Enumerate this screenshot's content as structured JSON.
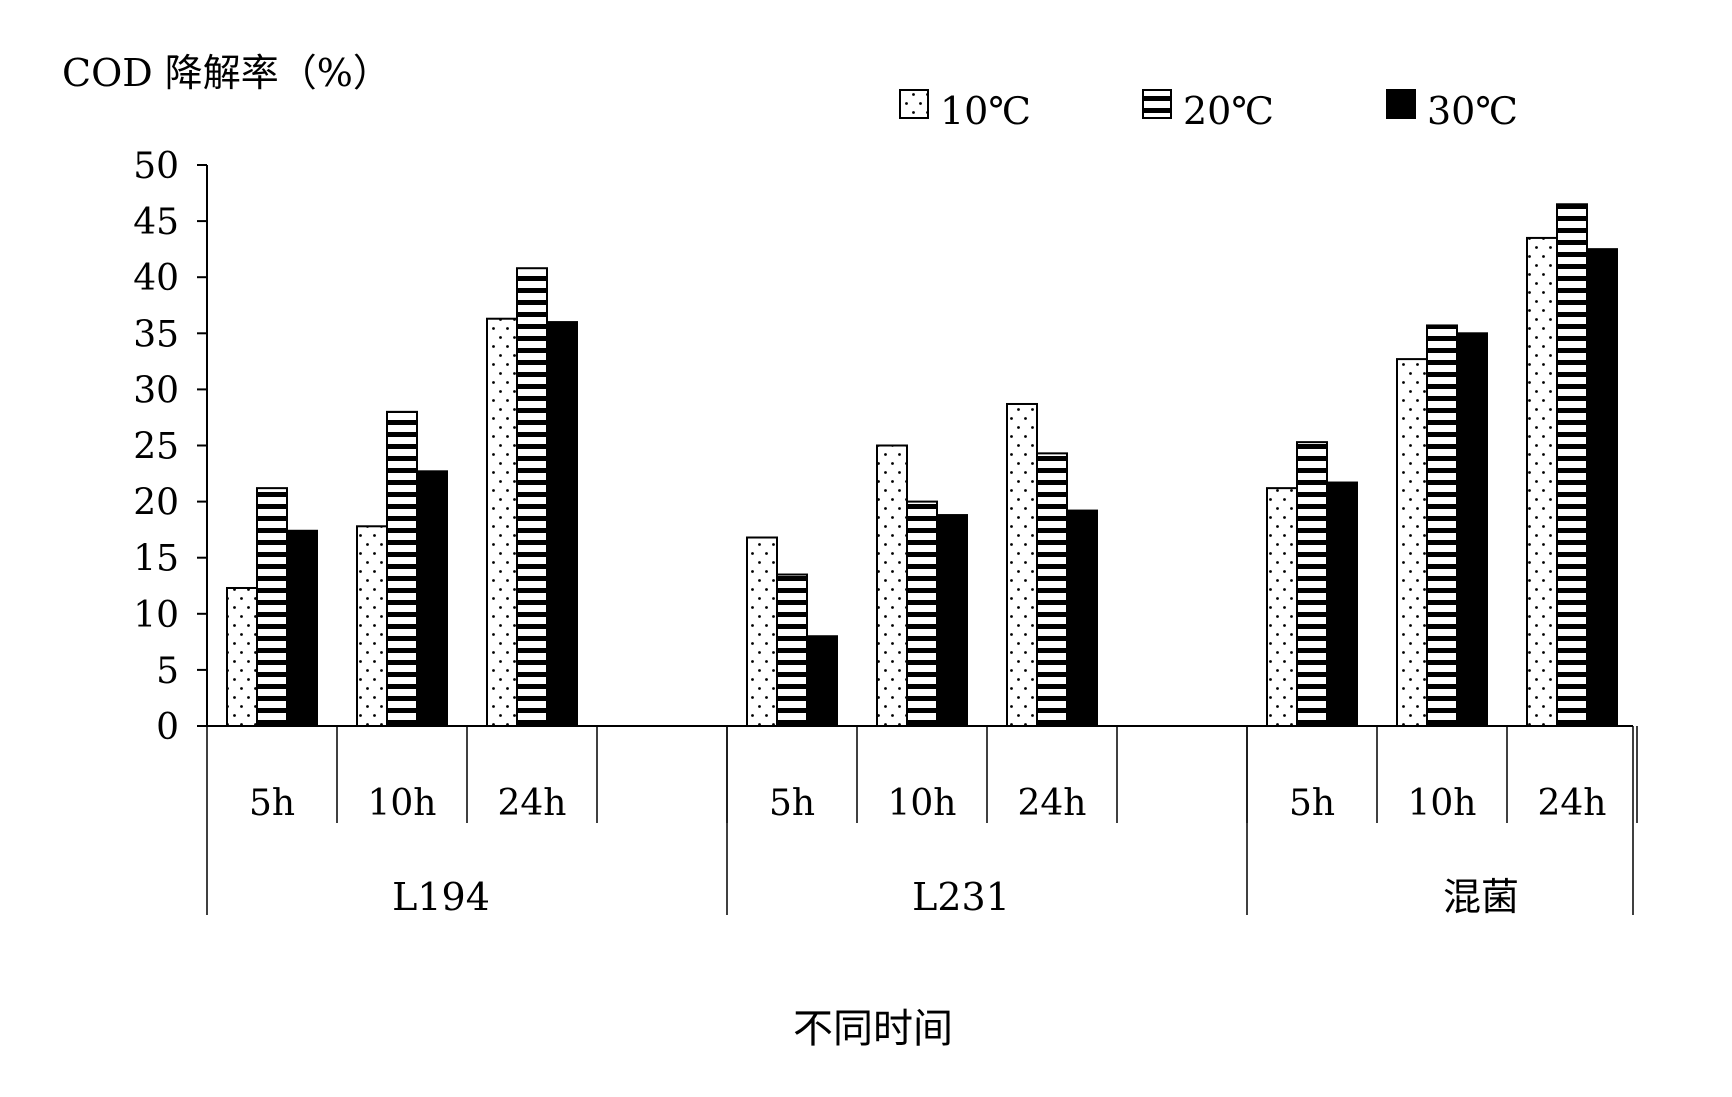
{
  "chart_data": {
    "type": "bar",
    "ylabel": "COD 降解率（%）",
    "xlabel": "不同时间",
    "ylim": [
      0,
      50
    ],
    "yticks": [
      "0",
      "5",
      "10",
      "15",
      "20",
      "25",
      "30",
      "35",
      "40",
      "45",
      "50"
    ],
    "legend_position": "top-right",
    "groups": [
      {
        "name": "L194",
        "times": [
          "5h",
          "10h",
          "24h"
        ]
      },
      {
        "name": "L231",
        "times": [
          "5h",
          "10h",
          "24h"
        ]
      },
      {
        "name": "混菌",
        "times": [
          "5h",
          "10h",
          "24h"
        ]
      }
    ],
    "series": [
      {
        "name": "10℃",
        "pattern": "dots",
        "values": [
          12.3,
          17.8,
          36.3,
          16.8,
          25.0,
          28.7,
          21.2,
          32.7,
          43.5
        ]
      },
      {
        "name": "20℃",
        "pattern": "stripes",
        "values": [
          21.2,
          28.0,
          40.8,
          13.5,
          20.0,
          24.3,
          25.3,
          35.7,
          46.5
        ]
      },
      {
        "name": "30℃",
        "pattern": "solid",
        "values": [
          17.4,
          22.7,
          36.0,
          8.0,
          18.8,
          19.2,
          21.7,
          35.0,
          42.5
        ]
      }
    ]
  }
}
